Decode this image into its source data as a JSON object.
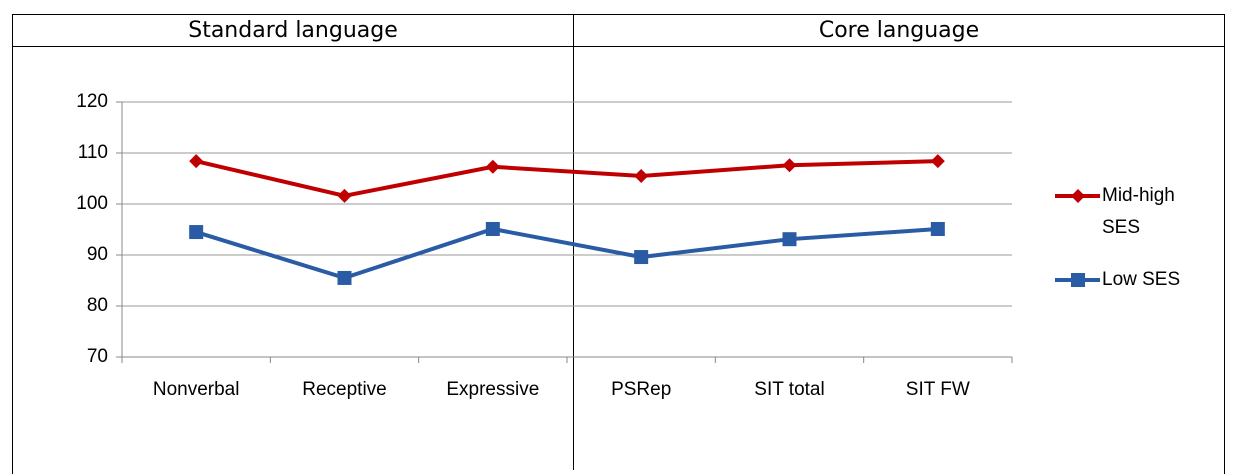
{
  "chart_data": {
    "type": "line",
    "group_labels": [
      "Standard language",
      "Core language"
    ],
    "categories": [
      "Nonverbal",
      "Receptive",
      "Expressive",
      "PSRep",
      "SIT total",
      "SIT FW"
    ],
    "series": [
      {
        "name": "Mid-high SES",
        "color": "#c00000",
        "marker": "diamond",
        "values": [
          108.4,
          101.6,
          107.3,
          105.5,
          107.6,
          108.4
        ]
      },
      {
        "name": "Low SES",
        "color": "#2a5ca6",
        "marker": "square",
        "values": [
          94.5,
          85.5,
          95.1,
          89.6,
          93.1,
          95.1
        ]
      }
    ],
    "ylim": [
      70,
      120
    ],
    "yticks": [
      70,
      80,
      90,
      100,
      110,
      120
    ],
    "grid": true,
    "legend": "right"
  }
}
